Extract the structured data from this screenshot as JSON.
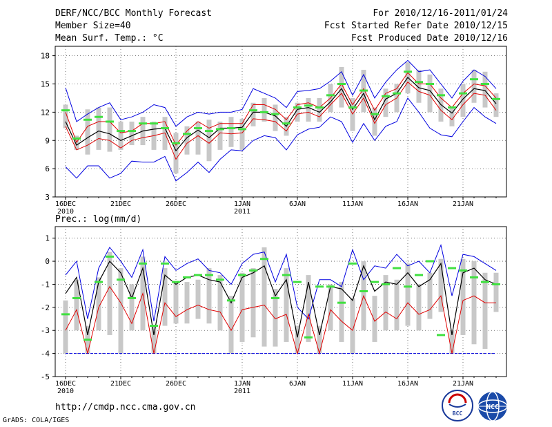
{
  "header": {
    "title": "DERF/NCC/BCC Monthly Forecast",
    "member_size": "Member Size=40",
    "variable": "Mean Surf. Temp.: °C",
    "period": "For 2010/12/16-2011/01/24",
    "fcst_started": "Fcst Started Refer Date 2010/12/15",
    "fcst_produced": "Fcst Produced Date 2010/12/16"
  },
  "footer": {
    "url": "http://cmdp.ncc.cma.gov.cn",
    "grads": "GrADS: COLA/IGES",
    "logo_bcc": "BCC",
    "logo_ncc": "NCC"
  },
  "colors": {
    "box": "#c8c8c8",
    "mean": "#000000",
    "inner": "#e00000",
    "outer": "#0000e0",
    "marker": "#40e040",
    "grid": "#555555"
  },
  "x_labels": [
    {
      "day": 1,
      "label": "16DEC",
      "sub": "2010"
    },
    {
      "day": 6,
      "label": "21DEC",
      "sub": ""
    },
    {
      "day": 11,
      "label": "26DEC",
      "sub": ""
    },
    {
      "day": 17,
      "label": "1JAN",
      "sub": "2011"
    },
    {
      "day": 22,
      "label": "6JAN",
      "sub": ""
    },
    {
      "day": 27,
      "label": "11JAN",
      "sub": ""
    },
    {
      "day": 32,
      "label": "16JAN",
      "sub": ""
    },
    {
      "day": 37,
      "label": "21JAN",
      "sub": ""
    }
  ],
  "chart_data": [
    {
      "type": "line",
      "title": "Mean Surf. Temp.: °C",
      "x": [
        1,
        2,
        3,
        4,
        5,
        6,
        7,
        8,
        9,
        10,
        11,
        12,
        13,
        14,
        15,
        16,
        17,
        18,
        19,
        20,
        21,
        22,
        23,
        24,
        25,
        26,
        27,
        28,
        29,
        30,
        31,
        32,
        33,
        34,
        35,
        36,
        37,
        38,
        39,
        40
      ],
      "ylim": [
        3,
        19
      ],
      "yticks": [
        3,
        6,
        9,
        12,
        15,
        18
      ],
      "grid": true,
      "series": [
        {
          "name": "ensemble max",
          "values": [
            14.6,
            11.0,
            11.8,
            12.5,
            13.0,
            11.2,
            11.5,
            12.0,
            12.8,
            12.5,
            10.5,
            11.5,
            12.0,
            11.8,
            12.0,
            12.0,
            12.3,
            14.5,
            14.0,
            13.5,
            12.5,
            14.2,
            14.3,
            14.5,
            15.3,
            16.3,
            13.8,
            16.0,
            13.5,
            15.2,
            16.5,
            17.5,
            16.3,
            16.5,
            15.0,
            13.5,
            15.3,
            16.5,
            15.8,
            14.5
          ]
        },
        {
          "name": "upper quantile",
          "values": [
            12.0,
            8.8,
            10.5,
            11.0,
            11.0,
            9.8,
            10.0,
            10.8,
            10.8,
            11.0,
            8.5,
            10.0,
            11.0,
            10.3,
            10.8,
            10.8,
            10.8,
            12.8,
            12.8,
            12.3,
            11.2,
            12.8,
            13.0,
            12.5,
            13.5,
            15.0,
            12.8,
            14.5,
            12.2,
            14.0,
            14.5,
            16.2,
            15.0,
            15.0,
            13.5,
            12.5,
            14.0,
            15.0,
            14.8,
            13.5
          ]
        },
        {
          "name": "ensemble mean",
          "values": [
            11.0,
            8.5,
            9.3,
            10.0,
            9.7,
            9.0,
            9.5,
            10.0,
            10.2,
            10.3,
            7.9,
            9.3,
            10.1,
            9.3,
            10.3,
            10.3,
            10.4,
            12.0,
            12.0,
            11.6,
            10.5,
            12.3,
            12.5,
            12.0,
            13.1,
            14.5,
            12.3,
            14.0,
            11.2,
            13.4,
            14.0,
            15.7,
            14.6,
            14.3,
            12.8,
            11.9,
            13.4,
            14.5,
            14.3,
            12.9
          ]
        },
        {
          "name": "lower quantile",
          "values": [
            10.5,
            8.0,
            8.5,
            9.2,
            9.0,
            8.2,
            9.0,
            9.3,
            9.5,
            9.8,
            7.0,
            8.7,
            9.5,
            8.7,
            9.8,
            9.7,
            9.8,
            11.3,
            11.2,
            11.0,
            10.0,
            11.8,
            12.0,
            11.5,
            12.8,
            14.0,
            11.8,
            13.5,
            10.8,
            12.8,
            13.5,
            15.2,
            14.2,
            13.8,
            12.2,
            11.2,
            12.8,
            14.0,
            13.8,
            12.2
          ]
        },
        {
          "name": "ensemble min",
          "values": [
            6.2,
            5.0,
            6.3,
            6.3,
            5.0,
            5.5,
            6.8,
            6.7,
            6.7,
            7.3,
            4.7,
            5.6,
            6.7,
            5.6,
            7.0,
            8.0,
            7.9,
            9.0,
            9.5,
            9.3,
            8.0,
            9.6,
            10.2,
            10.4,
            11.5,
            11.0,
            8.8,
            10.8,
            9.0,
            10.5,
            11.0,
            13.5,
            12.0,
            10.3,
            9.6,
            9.4,
            11.0,
            12.5,
            11.5,
            10.8
          ]
        },
        {
          "name": "box top",
          "values": [
            12.8,
            9.5,
            12.3,
            12.5,
            12.5,
            11.0,
            11.0,
            11.5,
            11.0,
            11.5,
            9.8,
            10.5,
            11.0,
            11.2,
            11.0,
            11.5,
            11.3,
            13.0,
            13.5,
            12.8,
            11.5,
            13.0,
            13.5,
            13.5,
            15.0,
            16.8,
            13.5,
            16.5,
            12.5,
            14.5,
            15.0,
            17.3,
            16.5,
            16.0,
            14.5,
            12.5,
            15.0,
            16.5,
            16.3,
            14.0
          ]
        },
        {
          "name": "box bottom",
          "values": [
            10.3,
            8.0,
            7.5,
            8.0,
            7.8,
            8.0,
            8.5,
            8.5,
            8.0,
            8.0,
            5.5,
            7.5,
            7.5,
            6.8,
            8.0,
            8.3,
            8.0,
            10.5,
            11.0,
            10.0,
            9.5,
            11.0,
            11.0,
            11.0,
            12.0,
            12.5,
            10.0,
            12.0,
            9.5,
            11.5,
            12.0,
            14.0,
            13.0,
            12.0,
            11.0,
            10.5,
            11.5,
            13.0,
            12.5,
            11.5
          ]
        },
        {
          "name": "green marker",
          "values": [
            12.2,
            9.2,
            11.2,
            11.5,
            11.0,
            10.0,
            10.0,
            10.8,
            10.8,
            10.3,
            8.7,
            9.7,
            10.3,
            10.0,
            10.2,
            10.3,
            10.2,
            12.2,
            12.0,
            11.8,
            10.8,
            12.5,
            12.7,
            12.5,
            13.8,
            15.0,
            12.5,
            14.3,
            11.8,
            13.7,
            14.0,
            16.3,
            15.2,
            15.0,
            13.8,
            12.5,
            14.0,
            15.5,
            15.0,
            13.4
          ]
        }
      ]
    },
    {
      "type": "line",
      "title": "Prec.: log(mm/d)",
      "x": [
        1,
        2,
        3,
        4,
        5,
        6,
        7,
        8,
        9,
        10,
        11,
        12,
        13,
        14,
        15,
        16,
        17,
        18,
        19,
        20,
        21,
        22,
        23,
        24,
        25,
        26,
        27,
        28,
        29,
        30,
        31,
        32,
        33,
        34,
        35,
        36,
        37,
        38,
        39,
        40
      ],
      "ylim": [
        -5,
        1.5
      ],
      "yticks": [
        -5,
        -4,
        -3,
        -2,
        -1,
        0,
        1
      ],
      "grid": true,
      "series": [
        {
          "name": "ensemble max",
          "values": [
            -0.6,
            0.0,
            -2.5,
            -0.3,
            0.6,
            0.0,
            -0.7,
            0.5,
            -2.6,
            0.2,
            -0.4,
            -0.1,
            0.1,
            -0.4,
            -0.5,
            -1.0,
            -0.1,
            0.3,
            0.4,
            -0.9,
            0.3,
            -2.0,
            -2.5,
            -0.8,
            -0.8,
            -1.1,
            0.5,
            -0.8,
            -0.2,
            -0.3,
            0.3,
            -0.2,
            0.0,
            -0.5,
            0.7,
            -1.5,
            0.3,
            0.2,
            -0.1,
            -0.4
          ]
        },
        {
          "name": "ensemble mean",
          "values": [
            -1.4,
            -0.7,
            -3.2,
            -0.9,
            0.0,
            -0.5,
            -1.6,
            -0.3,
            -3.2,
            -0.6,
            -1.0,
            -0.7,
            -0.6,
            -0.8,
            -0.9,
            -1.8,
            -0.7,
            -0.5,
            -0.2,
            -1.5,
            -0.8,
            -3.3,
            -0.9,
            -3.2,
            -1.1,
            -1.2,
            -1.7,
            -0.2,
            -1.3,
            -0.9,
            -1.0,
            -0.5,
            -1.1,
            -0.8,
            -0.1,
            -3.2,
            -0.5,
            -0.3,
            -0.8,
            -1.0
          ]
        },
        {
          "name": "lower red",
          "values": [
            -3.0,
            -2.1,
            -4.0,
            -2.0,
            -1.1,
            -1.8,
            -2.7,
            -1.4,
            -4.0,
            -1.8,
            -2.4,
            -2.1,
            -1.9,
            -2.1,
            -2.2,
            -3.0,
            -2.1,
            -2.0,
            -1.9,
            -2.5,
            -2.3,
            -4.0,
            -2.3,
            -4.0,
            -2.1,
            -2.6,
            -3.0,
            -1.5,
            -2.6,
            -2.2,
            -2.5,
            -1.8,
            -2.3,
            -2.1,
            -1.5,
            -4.0,
            -1.7,
            -1.5,
            -1.8,
            -1.8
          ]
        },
        {
          "name": "ensemble min",
          "values": [
            -4.0,
            -4.0,
            -4.0,
            -4.0,
            -4.0,
            -4.0,
            -4.0,
            -4.0,
            -4.0,
            -4.0,
            -4.0,
            -4.0,
            -4.0,
            -4.0,
            -4.0,
            -4.0,
            -4.0,
            -4.0,
            -4.0,
            -4.0,
            -4.0,
            -4.0,
            -4.0,
            -4.0,
            -4.0,
            -4.0,
            -4.0,
            -4.0,
            -4.0,
            -4.0,
            -4.0,
            -4.0,
            -4.0,
            -4.0,
            -4.0,
            -4.0,
            -4.0,
            -4.0,
            -4.0,
            -4.0
          ]
        },
        {
          "name": "box top",
          "values": [
            -1.7,
            -0.8,
            -2.8,
            -0.7,
            0.4,
            -0.3,
            -1.0,
            0.2,
            -2.8,
            -0.3,
            -0.9,
            -0.9,
            -0.8,
            -0.3,
            -0.6,
            -1.5,
            -0.5,
            -0.3,
            0.6,
            -1.2,
            -0.3,
            -2.8,
            -0.6,
            -2.8,
            -1.0,
            -0.9,
            -1.6,
            0.0,
            -1.5,
            -0.6,
            -0.8,
            -0.1,
            -1.0,
            -0.5,
            0.1,
            -3.0,
            0.1,
            0.0,
            -0.5,
            -0.5
          ]
        },
        {
          "name": "box bottom",
          "values": [
            -4.0,
            -3.0,
            -4.0,
            -3.0,
            -3.2,
            -4.0,
            -3.0,
            -3.0,
            -4.0,
            -2.8,
            -2.7,
            -2.7,
            -2.5,
            -2.7,
            -3.0,
            -4.0,
            -3.5,
            -3.3,
            -3.7,
            -3.7,
            -3.5,
            -4.0,
            -3.5,
            -4.0,
            -3.0,
            -3.5,
            -4.0,
            -3.0,
            -3.5,
            -3.0,
            -3.0,
            -2.8,
            -3.0,
            -2.5,
            -2.2,
            -4.0,
            -3.2,
            -3.6,
            -3.8,
            -2.2
          ]
        },
        {
          "name": "green marker",
          "values": [
            -2.3,
            -1.6,
            -3.4,
            -0.9,
            0.2,
            -0.8,
            -1.6,
            -0.1,
            -2.8,
            -0.1,
            -0.9,
            -0.7,
            -0.6,
            -0.6,
            -0.8,
            -1.7,
            -0.6,
            -0.4,
            0.1,
            -1.6,
            -0.6,
            -0.9,
            -3.3,
            -1.1,
            -1.1,
            -1.8,
            -0.1,
            -1.3,
            -0.9,
            -1.0,
            -0.3,
            -1.1,
            -0.6,
            0.0,
            -3.2,
            -0.3,
            -0.4,
            -0.7,
            -0.9,
            -1.0
          ]
        }
      ]
    }
  ]
}
